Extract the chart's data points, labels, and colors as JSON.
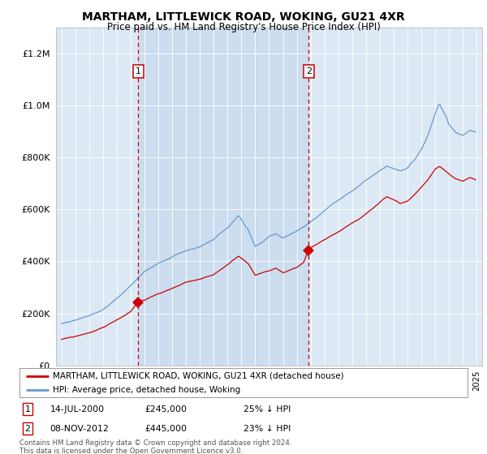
{
  "title": "MARTHAM, LITTLEWICK ROAD, WOKING, GU21 4XR",
  "subtitle": "Price paid vs. HM Land Registry's House Price Index (HPI)",
  "legend_label_red": "MARTHAM, LITTLEWICK ROAD, WOKING, GU21 4XR (detached house)",
  "legend_label_blue": "HPI: Average price, detached house, Woking",
  "sale1_date": "14-JUL-2000",
  "sale1_price": "£245,000",
  "sale1_note": "25% ↓ HPI",
  "sale2_date": "08-NOV-2012",
  "sale2_price": "£445,000",
  "sale2_note": "23% ↓ HPI",
  "footer": "Contains HM Land Registry data © Crown copyright and database right 2024.\nThis data is licensed under the Open Government Licence v3.0.",
  "background_color": "#ffffff",
  "plot_bg_color": "#dce9f5",
  "shade_color": "#c8dcee",
  "red_color": "#cc0000",
  "blue_color": "#6699cc",
  "grid_color": "#ffffff",
  "sale1_year": 2000.54,
  "sale2_year": 2012.86,
  "sale1_price_val": 245000,
  "sale2_price_val": 445000,
  "ylim_max": 1300000,
  "xlim_start": 1994.6,
  "xlim_end": 2025.4,
  "hpi_seed": 77,
  "red_seed": 99
}
